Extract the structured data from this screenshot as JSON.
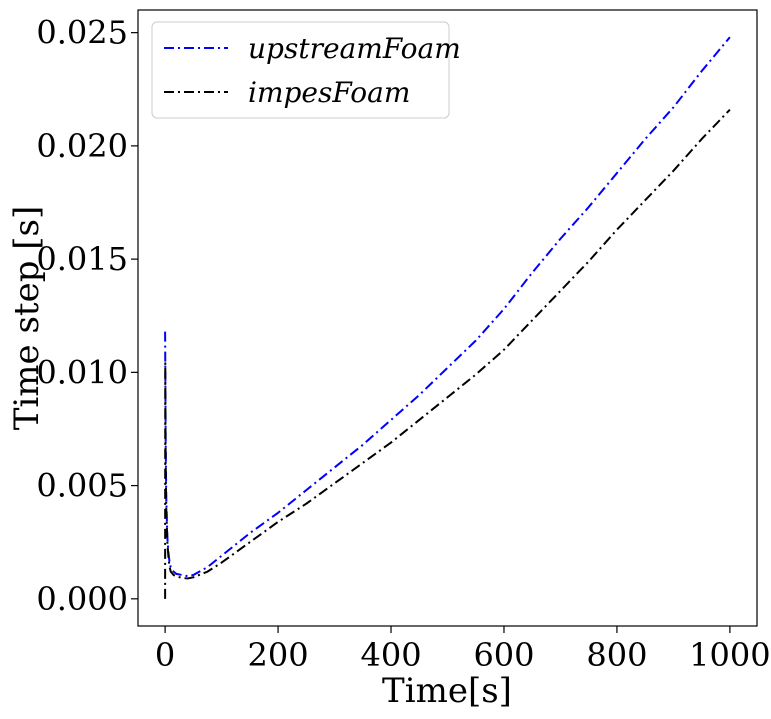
{
  "chart_data": {
    "type": "line",
    "xlabel": "Time[s]",
    "ylabel": "Time step [s]",
    "xlim": [
      -48,
      1048
    ],
    "ylim": [
      -0.0012,
      0.026
    ],
    "xticks": [
      0,
      200,
      400,
      600,
      800,
      1000
    ],
    "xtick_labels": [
      "0",
      "200",
      "400",
      "600",
      "800",
      "1000"
    ],
    "yticks": [
      0.0,
      0.005,
      0.01,
      0.015,
      0.02,
      0.025
    ],
    "ytick_labels": [
      "0.000",
      "0.005",
      "0.010",
      "0.015",
      "0.020",
      "0.025"
    ],
    "grid": false,
    "legend_position": "top-left",
    "series": [
      {
        "name": "upstreamFoam",
        "color": "#0000ff",
        "dash": "dashdot",
        "x": [
          0,
          0.5,
          1,
          2,
          4,
          6,
          8,
          10,
          15,
          20,
          30,
          40,
          50,
          75,
          100,
          150,
          200,
          250,
          300,
          350,
          400,
          450,
          500,
          550,
          600,
          650,
          700,
          750,
          800,
          850,
          900,
          950,
          1000
        ],
        "y": [
          0.0118,
          0.0095,
          0.007,
          0.0045,
          0.0027,
          0.002,
          0.0016,
          0.0014,
          0.0012,
          0.0011,
          0.00105,
          0.001,
          0.00105,
          0.0014,
          0.0019,
          0.0029,
          0.0038,
          0.0048,
          0.0058,
          0.0068,
          0.0079,
          0.009,
          0.0102,
          0.0114,
          0.0128,
          0.0144,
          0.0159,
          0.0173,
          0.0188,
          0.0203,
          0.0217,
          0.0233,
          0.0248
        ]
      },
      {
        "name": "impesFoam",
        "color": "#000000",
        "dash": "dashdot",
        "x": [
          0,
          0.3,
          0.6,
          1,
          2,
          4,
          6,
          8,
          10,
          15,
          20,
          30,
          40,
          50,
          75,
          100,
          150,
          200,
          250,
          300,
          350,
          400,
          450,
          500,
          550,
          600,
          650,
          700,
          750,
          800,
          850,
          900,
          950,
          1000
        ],
        "y": [
          0.0,
          0.0104,
          0.008,
          0.006,
          0.004,
          0.0025,
          0.0018,
          0.0014,
          0.0012,
          0.00105,
          0.001,
          0.00092,
          0.0009,
          0.00095,
          0.0012,
          0.0016,
          0.0025,
          0.0034,
          0.0042,
          0.0051,
          0.006,
          0.0069,
          0.0079,
          0.0089,
          0.0099,
          0.011,
          0.0123,
          0.0136,
          0.0149,
          0.0163,
          0.0176,
          0.0189,
          0.0203,
          0.0216
        ]
      }
    ]
  }
}
